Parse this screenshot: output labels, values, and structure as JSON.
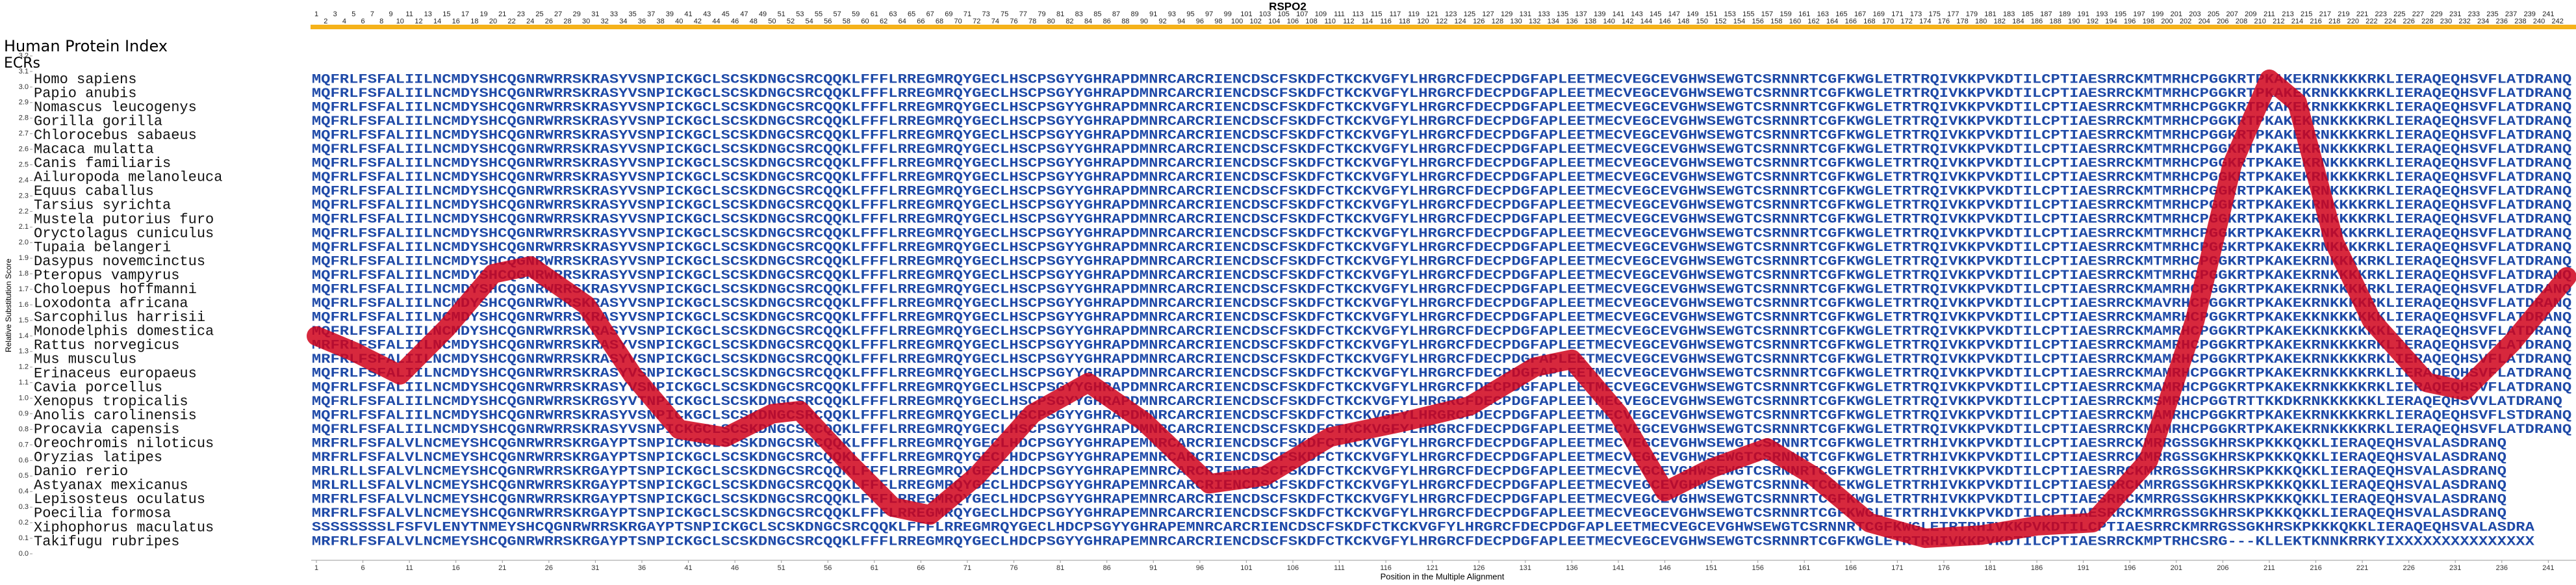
{
  "chart_data": {
    "type": "line",
    "title": "RSPO2",
    "ylabel": "Relative Substitution Score",
    "xlabel": "Position in the Multiple Alignment",
    "index_header": "Human Protein Index",
    "ecr_header": "ECRs",
    "alignment_index": [
      1,
      2,
      3,
      4,
      5,
      6,
      7,
      8,
      9,
      10,
      11,
      12,
      13,
      14,
      15,
      16,
      17,
      18,
      19,
      20,
      21,
      22,
      23,
      24,
      25,
      26,
      27,
      28,
      29,
      30,
      31,
      32,
      33,
      34,
      35,
      36,
      37,
      38,
      39,
      40,
      41,
      42,
      43,
      44,
      45,
      46,
      47,
      48,
      49,
      50,
      51,
      52,
      53,
      54,
      55,
      56,
      57,
      58,
      59,
      60,
      61,
      62,
      63,
      64,
      65,
      66,
      67,
      68,
      69,
      70,
      71,
      72,
      73,
      74,
      75,
      76,
      77,
      78,
      79,
      80,
      81,
      82,
      83,
      84,
      85,
      86,
      87,
      88,
      89,
      90,
      91,
      92,
      93,
      94,
      95,
      96,
      97,
      98,
      99,
      100,
      101,
      102,
      103,
      104,
      105,
      106,
      107,
      108,
      109,
      110,
      111,
      112,
      113,
      114,
      115,
      116,
      117,
      118,
      119,
      120,
      121,
      122,
      123,
      124,
      125,
      126,
      127,
      128,
      129,
      130,
      131,
      132,
      133,
      134,
      135,
      136,
      137,
      138,
      139,
      140,
      141,
      142,
      143,
      144,
      145,
      146,
      147,
      148,
      149,
      150,
      151,
      152,
      153,
      154,
      155,
      156,
      157,
      158,
      159,
      160,
      161,
      162,
      163,
      164,
      165,
      166,
      167,
      168,
      169,
      170,
      171,
      172,
      173,
      174,
      175,
      176,
      177,
      178,
      179,
      180,
      181,
      182,
      183,
      184,
      185,
      186,
      187,
      188,
      189,
      190,
      191,
      192,
      193,
      194,
      195,
      196,
      197,
      198,
      199,
      200,
      201,
      202,
      203,
      204,
      205,
      206,
      207,
      208,
      209,
      210,
      211,
      212,
      213,
      214,
      215,
      216,
      217,
      218,
      219,
      220,
      221,
      222,
      223,
      224,
      225,
      226,
      227,
      228,
      229,
      230,
      231,
      232,
      233,
      234,
      235,
      236,
      237,
      238,
      239,
      240,
      241,
      242
    ],
    "species": [
      "Homo sapiens",
      "Papio anubis",
      "Nomascus leucogenys",
      "Gorilla gorilla",
      "Chlorocebus sabaeus",
      "Macaca mulatta",
      "Canis familiaris",
      "Ailuropoda melanoleuca",
      "Equus caballus",
      "Tarsius syrichta",
      "Mustela putorius furo",
      "Oryctolagus cuniculus",
      "Tupaia belangeri",
      "Dasypus novemcinctus",
      "Pteropus vampyrus",
      "Choloepus hoffmanni",
      "Loxodonta africana",
      "Sarcophilus harrisii",
      "Monodelphis domestica",
      "Rattus norvegicus",
      "Mus musculus",
      "Erinaceus europaeus",
      "Cavia porcellus",
      "Xenopus tropicalis",
      "Anolis carolinensis",
      "Procavia capensis",
      "Oreochromis niloticus",
      "Oryzias latipes",
      "Danio rerio",
      "Astyanax mexicanus",
      "Lepisosteus oculatus",
      "Poecilia formosa",
      "Xiphophorus maculatus",
      "Takifugu rubripes"
    ],
    "sequences": [
      "MQFRLFSFALIILNCMDYSHCQGNRWRRSKRASYVSNPICKGCLSCSKDNGCSRCQQKLFFFLRREGMRQYGECLHSCPSGYYGHRAPDMNRCARCRIENCDSCFSKDFCTKCKVGFYLHRGRCFDECPDGFAPLEETMECVEGCEVGHWSEWGTCSRNNRTCGFKWGLETRTRQIVKKPVKDTILCPTIAESRRCKMTMRHCPGGKRTPKAKEKRNKKKKRKLIERAQEQHSVFLATDRANQ",
      "MQFRLFSFALIILNCMDYSHCQGNRWRRSKRASYVSNPICKGCLSCSKDNGCSRCQQKLFFFLRREGMRQYGECLHSCPSGYYGHRAPDMNRCARCRIENCDSCFSKDFCTKCKVGFYLHRGRCFDECPDGFAPLEETMECVEGCEVGHWSEWGTCSRNNRTCGFKWGLETRTRQIVKKPVKDTILCPTIAESRRCKMTMRHCPGGKRTPKAKEKRNKKKKRKLIERAQEQHSVFLATDRANQ",
      "MQFRLFSFALIILNCMDYSHCQGNRWRRSKRASYVSNPICKGCLSCSKDNGCSRCQQKLFFFLRREGMRQYGECLHSCPSGYYGHRAPDMNRCARCRIENCDSCFSKDFCTKCKVGFYLHRGRCFDECPDGFAPLEETMECVEGCEVGHWSEWGTCSRNNRTCGFKWGLETRTRQIVKKPVKDTILCPTIAESRRCKMTMRHCPGGKRTPKAKEKRNKKKKRKLIERAQEQHSVFLATDRANQ",
      "MQFRLFSFALIILNCMDYSHCQGNRWRRSKRASYVSNPICKGCLSCSKDNGCSRCQQKLFFFLRREGMRQYGECLHSCPSGYYGHRAPDMNRCARCRIENCDSCFSKDFCTKCKVGFYLHRGRCFDECPDGFAPLEETMECVEGCEVGHWSEWGTCSRNNRTCGFKWGLETRTRQIVKKPVKDTILCPTIAESRRCKMTMRHCPGGKRTPKAKEKRNKKKKRKLIERAQEQHSVFLATDRANQ",
      "MQFRLFSFALIILNCMDYSHCQGNRWRRSKRASYVSNPICKGCLSCSKDNGCSRCQQKLFFFLRREGMRQYGECLHSCPSGYYGHRAPDMNRCARCRIENCDSCFSKDFCTKCKVGFYLHRGRCFDECPDGFAPLEETMECVEGCEVGHWSEWGTCSRNNRTCGFKWGLETRTRQIVKKPVKDTILCPTIAESRRCKMTMRHCPGGKRTPKAKEKRNKKKKRKLIERAQEQHSVFLATDRANQ",
      "MQFRLFSFALIILNCMDYSHCQGNRWRRSKRASYVSNPICKGCLSCSKDNGCSRCQQKLFFFLRREGMRQYGECLHSCPSGYYGHRAPDMNRCARCRIENCDSCFSKDFCTKCKVGFYLHRGRCFDECPDGFAPLEETMECVEGCEVGHWSEWGTCSRNNRTCGFKWGLETRTRQIVKKPVKDTILCPTIAESRRCKMTMRHCPGGKRTPKAKEKRNKKKKRKLIERAQEQHSVFLATDRANQ",
      "MQFRLFSFALIILNCMDYSHCQGNRWRRSKRASYVSNPICKGCLSCSKDNGCSRCQQKLFFFLRREGMRQYGECLHSCPSGYYGHRAPDMNRCARCRIENCDSCFSKDFCTKCKVGFYLHRGRCFDECPDGFAPLEETMECVEGCEVGHWSEWGTCSRNNRTCGFKWGLETRTRQIVKKPVKDTILCPTIAESRRCKMTMRHCPGGKRTPKAKEKRNKKKKRKLIERAQEQHSVFLATDRANQ",
      "MQFRLFSFALIILNCMDYSHCQGNRWRRSKRASYVSNPICKGCLSCSKDNGCSRCQQKLFFFLRREGMRQYGECLHSCPSGYYGHRAPDMNRCARCRIENCDSCFSKDFCTKCKVGFYLHRGRCFDECPDGFAPLEETMECVEGCEVGHWSEWGTCSRNNRTCGFKWGLETRTRQIVKKPVKDTILCPTIAESRRCKMTMRHCPGGKRTPKAKEKRNKKKKRKLIERAQEQHSVFLATDRANQ",
      "MQFRLFSFALIILNCMDYSHCQGNRWRRSKRASYVSNPICKGCLSCSKDNGCSRCQQKLFFFLRREGMRQYGECLHSCPSGYYGHRAPDMNRCARCRIENCDSCFSKDFCTKCKVGFYLHRGRCFDECPDGFAPLEETMECVEGCEVGHWSEWGTCSRNNRTCGFKWGLETRTRQIVKKPVKDTILCPTIAESRRCKMTMRHCPGGKRTPKAKEKRNKKKKRKLIERAQEQHSVFLATDRANQ",
      "MQFRLFSFALIILNCMDYSHCQGNRWRRSKRASYVSNPICKGCLSCSKDNGCSRCQQKLFFFLRREGMRQYGECLHSCPSGYYGHRAPDMNRCARCRIENCDSCFSKDFCTKCKVGFYLHRGRCFDECPDGFAPLEETMECVEGCEVGHWSEWGTCSRNNRTCGFKWGLETRTRQIVKKPVKDTILCPTIAESRRCKMTMRHCPGGKRTPKAKEKRNKKKKRKLIERAQEQHSVFLATDRANQ",
      "MQFRLFSFALIILNCMDYSHCQGNRWRRSKRASYVSNPICKGCLSCSKDNGCSRCQQKLFFFLRREGMRQYGECLHSCPSGYYGHRAPDMNRCARCRIENCDSCFSKDFCTKCKVGFYLHRGRCFDECPDGFAPLEETMECVEGCEVGHWSEWGTCSRNNRTCGFKWGLETRTRQIVKKPVKDTILCPTIAESRRCKMTMRHCPGGKRTPKAKEKRNKKKKRKLIERAQEQHSVFLATDRANQ",
      "MQFRLFSFALIILNCMDYSHCQGNRWRRSKRASYVSNPICKGCLSCSKDNGCSRCQQKLFFFLRREGMRQYGECLHSCPSGYYGHRAPDMNRCARCRIENCDSCFSKDFCTKCKVGFYLHRGRCFDECPDGFAPLEETMECVEGCEVGHWSEWGTCSRNNRTCGFKWGLETRTRQIVKKPVKDTILCPTIAESRRCKMTMRHCPGGKRTPKAKEKRNKKKKRKLIERAQEQHSVFLATDRANQ",
      "MQFRLFSFALIILNCMDYSHCQGNRWRRSKRASYVSNPICKGCLSCSKDNGCSRCQQKLFFFLRREGMRQYGECLHSCPSGYYGHRAPDMNRCARCRIENCDSCFSKDFCTKCKVGFYLHRGRCFDECPDGFAPLEETMECVEGCEVGHWSEWGTCSRNNRTCGFKWGLETRTRQIVKKPVKDTILCPTIAESRRCKMTMRHCPGGKRTPKAKEKRNKKKKRKLIERAQEQHSVFLATDRANQ",
      "MQFRLFSFALIILNCMDYSHCQGNRWRRSKRASYVSNPICKGCLSCSKDNGCSRCQQKLFFFLRREGMRQYGECLHSCPSGYYGHRAPDMNRCARCRIENCDSCFSKDFCTKCKVGFYLHRGRCFDECPDGFAPLEETMECVEGCEVGHWSEWGTCSRNNRTCGFKWGLETRTRQIVKKPVKDTILCPTIAESRRCKMTMRHCPGGKRTPKAKEKRNKKKKRKLIERAQEQHSVFLATDRANQ",
      "MQFRLFSFALIILNCMDYSHCQGNRWRRSKRASYVSNPICKGCLSCSKDNGCSRCQQKLFFFLRREGMRQYGECLHSCPSGYYGHRAPDMNRCARCRIENCDSCFSKDFCTKCKVGFYLHRGRCFDECPDGFAPLEETMECVEGCEVGHWSEWGTCSRNNRTCGFKWGLETRTRQIVKKPVKDTILCPTIAESRRCKMTMRHCPGGKRTPKAKEKRNKKKKRKLIERAQEQHSVFLATDRANQ",
      "MQFRLFSFALIILNCMDYSHCQGNRWRRSKRASYVSNPICKGCLSCSKDNGCSRCQQKLFFFLRREGMRQYGECLHSCPSGYYGHRAPDMNRCARCRIENCDSCFSKDFCTKCKVGFYLHRGRCFDECPDGFAPLEETMECVEGCEVGHWSEWGTCSRNNRTCGFKWGLETRTRQIVKKPVKDTILCPTIAESRRCKMAMRHCPGGKRTPKAKEKRNKKKKRKLIERAQEQHSVFLATDRANQ",
      "MQFRLFSFALIILNCMDYSHCQGNRWRRSKRASYVSNPICKGCLSCSKDNGCSRCQQKLFFFLRREGMRQYGECLHSCPSGYYGHRAPDMNRCARCRIENCDSCFSKDFCTKCKVGFYLHRGRCFDECPDGFAPLEETMECVEGCEVGHWSEWGTCSRNNRTCGFKWGLETRTRQIVKKPVKDTILCPTIAESRRCKMAVRHCPGGKRTPKAKEKRNKKKKRKLIERAQEQHSVFLATDRANQ",
      "MQFRLFSFALIILNCMDYSHCQGNRWRRSKRASYVSNPICKGCLSCSKDNGCSRCQQKLFFFLRREGMRQYGECLHSCPSGYYGHRAPDMNRCARCRIENCDSCFSKDFCTKCKVGFYLHRGRCFDECPDGFAPLEETMECVEGCEVGHWSEWGTCSRNNRTCGFKWGLETRTRQIVKKPVKDTILCPTIAESRRCKMAMRHCPGGKRTPKAKEKKNKKKKKKLIERAQEQHSVFLATDRANQ",
      "MQFRLFSFALIILNCMDYSHCQGNRWRRSKRASYVSNPICKGCLSCSKDNGCSRCQQKLFFFLRREGMRQYGECLHSCPSGYYGHRAPDMNRCARCRIENCDSCFSKDFCTKCKVGFYLHRGRCFDECPDGFAPLEETMECVEGCEVGHWSEWGTCSRNNRTCGFKWGLETRTRQIVKKPVKDTILCPTIAESRRCKMAMRHCPGGKRTPKAKEKKNKKKKKKLIERAQEQHSVFLATDRANQ",
      "MRFRLFSFALIILNCMDYSHCQGNRWRRSKRASYVSNPICKGCLSCSKDNGCSRCQQKLFFFLRREGMRQYGECLHSCPSGYYGHRAPDMNRCARCRIENCDSCFSKDFCTKCKVGFYLHRGRCFDECPDGFAPLEETMECVEGCEVGHWSEWGTCSRNNRTCGFKWGLETRTRQIVKKPVKDTILCPTIAESRRCKMAMRHCPGGKRTPKAKEKRNKKKKRKLIERAQEQHSVFLATDRANQ",
      "MRFRLFSFALIILNCMDYSHCQGNRWRRSKRASYVSNPICKGCLSCSKDNGCSRCQQKLFFFLRREGMRQYGECLHSCPSGYYGHRAPDMNRCARCRIENCDSCFSKDFCTKCKVGFYLHRGRCFDECPDGFAPLEETMECVEGCEVGHWSEWGTCSRNNRTCGFKWGLETRTRQIVKKPVKDTILCPTIAESRRCKMAMRHCPGGKRTPKAKEKRNKKKKRKLIERAQEQHSVFLATDRANQ",
      "MQFRLFSFALIILNCMDYSHCQGNRWRRSKRASYVSNPICKGCLSCSKDNGCSRCQQKLFFFLRREGMRQYGECLHSCPSGYYGHRAPDMNRCARCRIENCDSCFSKDFCTKCKVGFYLHRGRCFDECPDGFAPLEETMECVEGCEVGHWSEWGTCSRNNRTCGFKWGLETRTRQIVKKPVKDTILCPTIAESRRCKMAMRHCPGGKRTPKAKEKRNKKKKRKLIERAQEQHSVFLATDRANQ",
      "MQFRLFSFALIILNCMDYSHCQGNRWRRSKRASYVSNPICKGCLSCSKDNGCSRCQQKLFFFLRREGMRQYGECLHSCPSGYYGHRAPDMNRCARCRIENCDSCFSKDFCTKCKVGFYLHRGRCFDECPDGFAPLEETMECVEGCEVGHWSEWGTCSRNNRTCGFKWGLETRTRQIVKKPVKDTILCPTIAESRRCKMAMRHCPGGKRTPKAKEKRNKKKKRKLIERAQEQHSVFLATDRANQ",
      "MQFRLFSFALIILNCMDYSHCQGNRWRRSKRGSYVTNPICKGCLSCSKDNGCSRCQQKLFFFLRREGMRQYGECLHSCPSGYYGHRAPDMNRCARCRIENCDSCFSKDFCTKCKVGFYLHRGRCFDECPDGFAPLEETMECVEGCEVGHWSEWGTCSRNNRTCGFKWGLETRTRQIVKKPVKDTILCPTIAESRRCKMSMRHCPGGTRTTKKDKRNKKKKKKLIERAQEQHSVVLATDRANQ",
      "MQFRLFSFALIILNCMDYSHCQGNRWRRSKRASYVSNPICKGCLSCSKDNGCSRCQQKLFFFLRREGMRQYGECLHSCPSGYYGHRAPDMNRCARCRIENCDSCFSKDFCTKCKVGFYLHRGRCFDECPDGFAPLEETMECVEGCEVGHWSEWGTCSRNNRTCGFKWGLETRTRQIVKKPVKDTILCPTIAESRRCKMAMRHCPGGKRTPKAKEKRNKKKKRKLIERAQEQHSVFLSTDRANQ",
      "MQFRLFSFALIILNCMDYSHCQGNRWRRSKRASYVSNPICKGCLSCSKDNGCSRCQQKLFFFLRREGMRQYGECLHSCPSGYYGHRAPDMNRCARCRIENCDSCFSKDFCTKCKVGFYLHRGRCFDECPDGFAPLEETMECVEGCEVGHWSEWGTCSRNNRTCGFKWGLETRTRQIVKKPVKDTILCPTIAESRRCKMAMRHCPGGKRTPKAKEKRNKKKKRKLIERAQEQHSVFLATDRANQ",
      "MRFRLFSFALVLNCMEYSHCQGNRWRRSKRGAYPTSNPICKGCLSCSKDNGCSRCQQKLFFFLRREGMRQYGECLHDCPSGYYGHRAPEMNRCARCRIENCDSCFSKDFCTKCKVGFYLHRGRCFDECPDGFAPLEETMECVEGCEVGHWSEWGTCSRNNRTCGFKWGLETRTRHIVKKPVKDTILCPTIAESRRCKMRRGSSGKHRSKPKKKQKKLIERAQEQHSVALASDRANQ",
      "MRFRLFSFALVLNCMEYSHCQGNRWRRSKRGAYPTSNPICKGCLSCSKDNGCSRCQQKLFFFLRREGMRQYGECLHDCPSGYYGHRAPEMNRCARCRIENCDSCFSKDFCTKCKVGFYLHRGRCFDECPDGFAPLEETMECVEGCEVGHWSEWGTCSRNNRTCGFKWGLETRTRHIVKKPVKDTILCPTIAESRRCKMRRGSSGKHRSKPKKKQKKLIERAQEQHSVALASDRANQ",
      "MRLRLLSFALVLNCMEYSHCQGNRWRRSKRGAYPTSNPICKGCLSCSKDNGCSRCQQKLFFFLRREGMRQYGECLHDCPSGYYGHRAPEMNRCARCRIENCDSCFSKDFCTKCKVGFYLHRGRCFDECPDGFAPLEETMECVEGCEVGHWSEWGTCSRNNRTCGFKWGLETRTRHIVKKPVKDTILCPTIAESRRCKMRRGSSGKHRSKPKKKQKKLIERAQEQHSVALASDRANQ",
      "MRLRLLSFALVLNCMEYSHCQGNRWRRSKRGAYPTSNPICKGCLSCSKDNGCSRCQQKLFFFLRREGMRQYGECLHDCPSGYYGHRAPEMNRCARCRIENCDSCFSKDFCTKCKVGFYLHRGRCFDECPDGFAPLEETMECVEGCEVGHWSEWGTCSRNNRTCGFKWGLETRTRHIVKKPVKDTILCPTIAESRRCKMRRGSSGKHRSKPKKKQKKLIERAQEQHSVALASDRANQ",
      "MRFRLFSFALVLNCMEYSHCQGNRWRRSKRGAYPTSNPICKGCLSCSKDNGCSRCQQKLFFFLRREGMRQYGECLHDCPSGYYGHRAPEMNRCARCRIENCDSCFSKDFCTKCKVGFYLHRGRCFDECPDGFAPLEETMECVEGCEVGHWSEWGTCSRNNRTCGFKWGLETRTRHIVKKPVKDTILCPTIAESRRCKMRRGSSGKHRSKPKKKQKKLIERAQEQHSVALASDRANQ",
      "MRFRLFSFALVLNCMEYSHCQGNRWRRSKRGAYPTSNPICKGCLSCSKDNGCSRCQQKLFFFLRREGMRQYGECLHDCPSGYYGHRAPEMNRCARCRIENCDSCFSKDFCTKCKVGFYLHRGRCFDECPDGFAPLEETMECVEGCEVGHWSEWGTCSRNNRTCGFKWGLETRTRHIVKKPVKDTILCPTIAESRRCKMRRGSSGKHRSKPKKKQKKLIERAQEQHSVALASDRANQ",
      "SSSSSSSSLFSFVLENYTNMEYSHCQGNRWRRSKRGAYPTSNPICKGCLSCSKDNGCSRCQQKLFFFLRREGMRQYGECLHDCPSGYYGHRAPEMNRCARCRIENCDSCFSKDFCTKCKVGFYLHRGRCFDECPDGFAPLEETMECVEGCEVGHWSEWGTCSRNNRTCGFKWGLETRTRHIVKKPVKDTILCPTIAESRRCKMRRGSSGKHRSKPKKKQKKLIERAQEQHSVALASDRA",
      "MRFRLFSFALVLNCMEYSHCQGNRWRRSKRGAYPTSNPICKGCLSCSKDNGCSRCQQKLFFFLRREGMRQYGECLHDCPSGYYGHRAPEMNRCARCRIENCDSCFSKDFCTKCKVGFYLHRGRCFDECPDGFAPLEETMECVEGCEVGHWSEWGTCSRNNRTCGFKWGLETRTRHIVKKPVKDTILCPTIAESRRCKMPTRHCSRG---KLLEKTKNNKRRKYIXXXXXXXXXXXXXXX"
    ],
    "series": [
      {
        "color": "#d0021b",
        "x": [
          1,
          5,
          10,
          15,
          20,
          24,
          30,
          35,
          40,
          45,
          50,
          53,
          58,
          63,
          67,
          72,
          78,
          84,
          90,
          97,
          103,
          110,
          118,
          125,
          132,
          136,
          141,
          146,
          151,
          157,
          162,
          168,
          174,
          180,
          186,
          192,
          198,
          203,
          207,
          211,
          214,
          218,
          222,
          228,
          232,
          237,
          243
        ],
        "values": [
          1.4,
          1.3,
          1.15,
          1.45,
          1.8,
          1.85,
          1.6,
          1.15,
          0.8,
          0.75,
          0.9,
          0.92,
          0.6,
          0.3,
          0.25,
          0.5,
          0.9,
          1.1,
          0.85,
          0.45,
          0.5,
          0.75,
          0.85,
          0.95,
          1.2,
          1.25,
          0.9,
          0.4,
          0.55,
          0.68,
          0.5,
          0.2,
          0.1,
          0.12,
          0.18,
          0.2,
          0.6,
          1.5,
          2.5,
          3.05,
          2.9,
          2.0,
          1.5,
          1.1,
          1.05,
          1.35,
          1.78
        ]
      }
    ],
    "xlim": [
      1,
      243
    ],
    "ylim": [
      0,
      3.2
    ],
    "xticks": [
      1,
      6,
      11,
      16,
      21,
      26,
      31,
      36,
      41,
      46,
      51,
      56,
      61,
      66,
      71,
      76,
      81,
      86,
      91,
      96,
      101,
      106,
      111,
      116,
      121,
      126,
      131,
      136,
      141,
      146,
      151,
      156,
      161,
      166,
      171,
      176,
      181,
      186,
      191,
      196,
      201,
      206,
      211,
      216,
      221,
      226,
      231,
      236,
      241
    ],
    "yticks": [
      {
        "value": 0,
        "label": "0.0"
      },
      0.1,
      0.2,
      0.3,
      0.4,
      0.5,
      0.6,
      0.7,
      0.8,
      0.9,
      {
        "value": 1,
        "label": "1.0"
      },
      1.1,
      1.2,
      1.3,
      1.4,
      1.5,
      1.6,
      1.7,
      1.8,
      1.9,
      {
        "value": 2,
        "label": "2.0"
      },
      2.1,
      2.2,
      2.3,
      2.4,
      2.5,
      2.6,
      2.7,
      2.8,
      2.9,
      {
        "value": 3,
        "label": "3.0"
      },
      3.1,
      3.2
    ]
  }
}
